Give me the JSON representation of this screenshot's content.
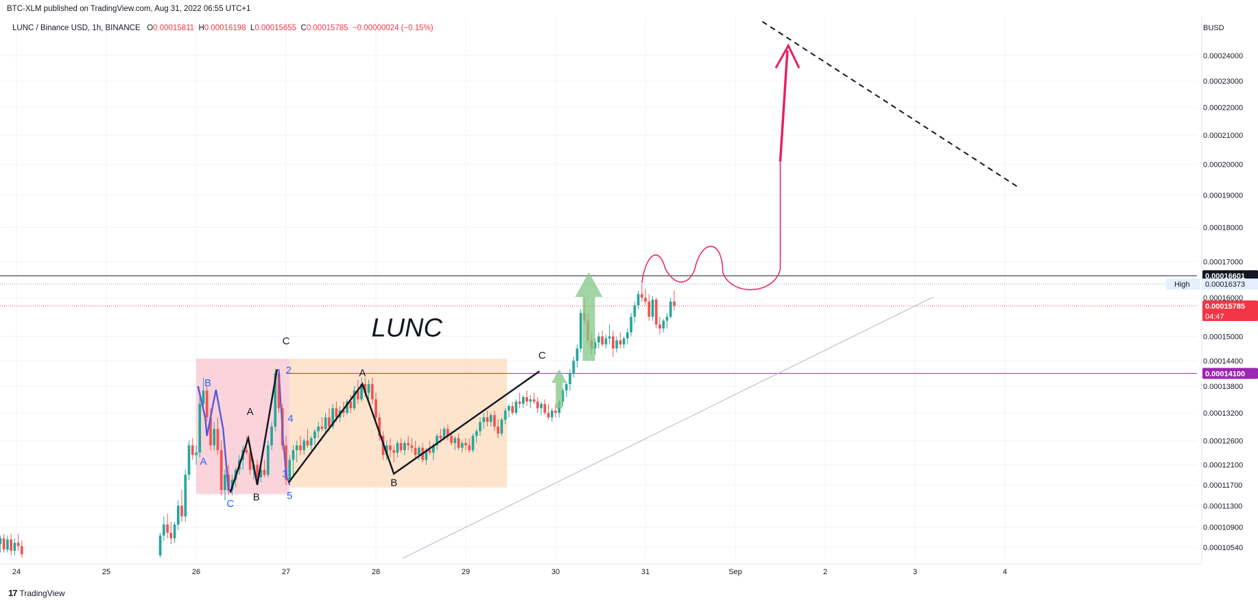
{
  "header": {
    "published": "BTC-XLM published on TradingView.com, Aug 31, 2022 06:55 UTC+1",
    "symbol": "LUNC / Binance USD, 1h, BINANCE",
    "o_label": "O",
    "o_value": "0.00015811",
    "h_label": "H",
    "h_value": "0.00016198",
    "l_label": "L",
    "l_value": "0.00015655",
    "c_label": "C",
    "c_value": "0.00015785",
    "change": "−0.00000024 (−0.15%)"
  },
  "footer": {
    "brand": "TradingView",
    "logo": "tradingview-logo-icon"
  },
  "colors": {
    "up": "#26a69a",
    "down": "#ef5350",
    "pink_zone": "#f8b7c3",
    "orange_zone": "#fcd9b8",
    "drawing_red": "#e91e63",
    "wave_blue": "#5b5bd6",
    "purple": "#9c27b0",
    "arrow_green": "#81c784"
  },
  "chart_data": {
    "type": "candlestick",
    "title": "LUNC",
    "currency_label": "BUSD",
    "x_ticks": [
      "24",
      "25",
      "26",
      "27",
      "28",
      "29",
      "30",
      "31",
      "Sep",
      "2",
      "3",
      "4"
    ],
    "y_ticks": [
      "0.00024000",
      "0.00023000",
      "0.00022000",
      "0.00021000",
      "0.00020000",
      "0.00019000",
      "0.00018000",
      "0.00017000",
      "0.00016000",
      "0.00015000",
      "0.00014400",
      "0.00013800",
      "0.00013200",
      "0.00012600",
      "0.00012100",
      "0.00011700",
      "0.00011300",
      "0.00010900",
      "0.00010540"
    ],
    "y_scale": "log",
    "ylim": [
      0.000103,
      0.000255
    ],
    "price_labels": [
      {
        "value": "0.00016601",
        "kind": "horizontal-line"
      },
      {
        "value": "0.00016373",
        "kind": "high",
        "tag": "High"
      },
      {
        "value": "0.00015785",
        "kind": "last",
        "countdown": "04:47"
      },
      {
        "value": "0.00014100",
        "kind": "horizontal-line"
      }
    ],
    "wave_labels": [
      {
        "text": "C",
        "day": 27.0,
        "price": 0.000148
      },
      {
        "text": "A",
        "day": 27.85,
        "price": 0.0001403
      },
      {
        "text": "B",
        "day": 28.2,
        "price": 0.0001168
      },
      {
        "text": "C",
        "day": 29.85,
        "price": 0.0001445
      },
      {
        "text": "A",
        "day": 26.6,
        "price": 0.0001315
      },
      {
        "text": "B",
        "day": 26.67,
        "price": 0.000114
      },
      {
        "text": "C",
        "day": 26.38,
        "price": 0.0001128
      },
      {
        "text": "B",
        "day": 26.13,
        "price": 0.000138
      },
      {
        "text": "A",
        "day": 26.08,
        "price": 0.000121
      }
    ],
    "sub_wave_labels": [
      {
        "text": "2",
        "day": 27.03,
        "price": 0.000141
      },
      {
        "text": "4",
        "day": 27.05,
        "price": 0.00013
      },
      {
        "text": "3",
        "day": 26.99,
        "price": 0.0001185
      },
      {
        "text": "5",
        "day": 27.04,
        "price": 0.0001143
      }
    ],
    "candles": [
      [
        23.82,
        0.000106,
        0.0001075,
        0.0001045,
        0.000107
      ],
      [
        23.86,
        0.000107,
        0.0001078,
        0.0001045,
        0.000105
      ],
      [
        23.9,
        0.000105,
        0.0001075,
        0.0001045,
        0.0001068
      ],
      [
        23.94,
        0.0001068,
        0.0001078,
        0.000104,
        0.0001048
      ],
      [
        23.98,
        0.0001048,
        0.000107,
        0.000104,
        0.0001062
      ],
      [
        24.02,
        0.0001062,
        0.0001078,
        0.0001048,
        0.0001056
      ],
      [
        24.06,
        0.0001056,
        0.0001066,
        0.0001036,
        0.0001042
      ],
      [
        25.6,
        0.000104,
        0.000108,
        0.0001036,
        0.0001075
      ],
      [
        25.64,
        0.0001075,
        0.000111,
        0.0001065,
        0.0001095
      ],
      [
        25.68,
        0.0001095,
        0.0001115,
        0.000107,
        0.000108
      ],
      [
        25.72,
        0.000108,
        0.00011,
        0.000106,
        0.000107
      ],
      [
        25.76,
        0.000107,
        0.00011,
        0.0001062,
        0.0001095
      ],
      [
        25.8,
        0.0001095,
        0.000114,
        0.0001085,
        0.000113
      ],
      [
        25.84,
        0.000113,
        0.000116,
        0.00011,
        0.000111
      ],
      [
        25.88,
        0.000111,
        0.00012,
        0.00011,
        0.000119
      ],
      [
        25.92,
        0.000119,
        0.000126,
        0.000118,
        0.000125
      ],
      [
        25.96,
        0.000125,
        0.0001265,
        0.000122,
        0.000123
      ],
      [
        26.0,
        0.000123,
        0.000125,
        0.000121,
        0.0001235
      ],
      [
        26.04,
        0.0001235,
        0.000136,
        0.0001225,
        0.000134
      ],
      [
        26.08,
        0.000134,
        0.00014,
        0.000132,
        0.000137
      ],
      [
        26.12,
        0.000137,
        0.000138,
        0.00013,
        0.000131
      ],
      [
        26.16,
        0.000131,
        0.000133,
        0.000124,
        0.000125
      ],
      [
        26.2,
        0.000125,
        0.00013,
        0.000124,
        0.0001285
      ],
      [
        26.24,
        0.0001285,
        0.000131,
        0.000123,
        0.000124
      ],
      [
        26.28,
        0.000124,
        0.000126,
        0.000115,
        0.000116
      ],
      [
        26.32,
        0.000116,
        0.00012,
        0.000114,
        0.000119
      ],
      [
        26.36,
        0.000119,
        0.000121,
        0.000115,
        0.000116
      ],
      [
        26.4,
        0.000116,
        0.000119,
        0.000115,
        0.000118
      ],
      [
        26.44,
        0.000118,
        0.0001205,
        0.0001165,
        0.00012
      ],
      [
        26.48,
        0.00012,
        0.000123,
        0.000119,
        0.000122
      ],
      [
        26.52,
        0.000122,
        0.000125,
        0.00012,
        0.000124
      ],
      [
        26.56,
        0.000124,
        0.000127,
        0.000123,
        0.0001235
      ],
      [
        26.6,
        0.0001235,
        0.000125,
        0.000119,
        0.00012
      ],
      [
        26.64,
        0.00012,
        0.000122,
        0.000118,
        0.000121
      ],
      [
        26.68,
        0.000121,
        0.000122,
        0.000117,
        0.0001185
      ],
      [
        26.72,
        0.0001185,
        0.0001205,
        0.0001175,
        0.00012
      ],
      [
        26.76,
        0.00012,
        0.000122,
        0.0001185,
        0.000119
      ],
      [
        26.8,
        0.000119,
        0.000126,
        0.0001185,
        0.000125
      ],
      [
        26.84,
        0.000125,
        0.00013,
        0.000124,
        0.000129
      ],
      [
        26.88,
        0.000129,
        0.000142,
        0.000128,
        0.000141
      ],
      [
        26.92,
        0.000141,
        0.000142,
        0.000132,
        0.000133
      ],
      [
        26.96,
        0.000133,
        0.000134,
        0.000124,
        0.000125
      ],
      [
        27.0,
        0.000125,
        0.000127,
        0.000117,
        0.000118
      ],
      [
        27.04,
        0.000118,
        0.000123,
        0.000117,
        0.000122
      ],
      [
        27.08,
        0.000122,
        0.000125,
        0.000119,
        0.000124
      ],
      [
        27.12,
        0.000124,
        0.000126,
        0.0001215,
        0.000125
      ],
      [
        27.16,
        0.000125,
        0.000127,
        0.000123,
        0.000124
      ],
      [
        27.2,
        0.000124,
        0.0001265,
        0.000123,
        0.000126
      ],
      [
        27.24,
        0.000126,
        0.0001285,
        0.0001245,
        0.000125
      ],
      [
        27.28,
        0.000125,
        0.000127,
        0.000124,
        0.0001265
      ],
      [
        27.32,
        0.0001265,
        0.0001285,
        0.000125,
        0.000128
      ],
      [
        27.36,
        0.000128,
        0.00013,
        0.0001265,
        0.000129
      ],
      [
        27.4,
        0.000129,
        0.000131,
        0.000128,
        0.0001285
      ],
      [
        27.44,
        0.0001285,
        0.000132,
        0.0001275,
        0.000131
      ],
      [
        27.48,
        0.000131,
        0.000133,
        0.000128,
        0.000129
      ],
      [
        27.52,
        0.000129,
        0.000134,
        0.0001285,
        0.000133
      ],
      [
        27.56,
        0.000133,
        0.0001345,
        0.00013,
        0.000131
      ],
      [
        27.6,
        0.000131,
        0.0001335,
        0.00013,
        0.0001325
      ],
      [
        27.64,
        0.0001325,
        0.0001345,
        0.000131,
        0.000132
      ],
      [
        27.68,
        0.000132,
        0.000135,
        0.0001315,
        0.0001345
      ],
      [
        27.72,
        0.0001345,
        0.000136,
        0.000132,
        0.000133
      ],
      [
        27.76,
        0.000133,
        0.000138,
        0.0001325,
        0.000137
      ],
      [
        27.8,
        0.000137,
        0.0001395,
        0.000134,
        0.000135
      ],
      [
        27.84,
        0.000135,
        0.00014,
        0.0001345,
        0.0001385
      ],
      [
        27.88,
        0.0001385,
        0.00014,
        0.0001355,
        0.0001365
      ],
      [
        27.92,
        0.0001365,
        0.0001395,
        0.000135,
        0.0001385
      ],
      [
        27.96,
        0.0001385,
        0.00014,
        0.000134,
        0.000135
      ],
      [
        28.0,
        0.000135,
        0.0001365,
        0.00013,
        0.000131
      ],
      [
        28.04,
        0.000131,
        0.000132,
        0.000126,
        0.000127
      ],
      [
        28.08,
        0.000127,
        0.000128,
        0.000122,
        0.000123
      ],
      [
        28.12,
        0.000123,
        0.000126,
        0.000122,
        0.000125
      ],
      [
        28.16,
        0.000125,
        0.0001265,
        0.0001225,
        0.000124
      ],
      [
        28.2,
        0.000124,
        0.000125,
        0.0001215,
        0.0001235
      ],
      [
        28.24,
        0.0001235,
        0.000126,
        0.0001225,
        0.0001255
      ],
      [
        28.28,
        0.0001255,
        0.0001265,
        0.0001235,
        0.000124
      ],
      [
        28.32,
        0.000124,
        0.000126,
        0.000123,
        0.0001255
      ],
      [
        28.36,
        0.0001255,
        0.000127,
        0.000124,
        0.000125
      ],
      [
        28.4,
        0.000125,
        0.0001265,
        0.0001235,
        0.0001245
      ],
      [
        28.44,
        0.0001245,
        0.000126,
        0.0001225,
        0.000123
      ],
      [
        28.48,
        0.000123,
        0.000125,
        0.000122,
        0.0001245
      ],
      [
        28.52,
        0.0001245,
        0.0001255,
        0.0001215,
        0.000122
      ],
      [
        28.56,
        0.000122,
        0.0001245,
        0.000121,
        0.000124
      ],
      [
        28.6,
        0.000124,
        0.000126,
        0.000123,
        0.0001235
      ],
      [
        28.64,
        0.0001235,
        0.0001255,
        0.000122,
        0.000125
      ],
      [
        28.68,
        0.000125,
        0.0001275,
        0.000124,
        0.000127
      ],
      [
        28.72,
        0.000127,
        0.0001285,
        0.0001255,
        0.0001265
      ],
      [
        28.76,
        0.0001265,
        0.000129,
        0.000126,
        0.0001285
      ],
      [
        28.8,
        0.0001285,
        0.0001295,
        0.000126,
        0.000127
      ],
      [
        28.84,
        0.000127,
        0.000128,
        0.000125,
        0.0001255
      ],
      [
        28.88,
        0.0001255,
        0.000127,
        0.000124,
        0.0001265
      ],
      [
        28.92,
        0.0001265,
        0.0001275,
        0.000124,
        0.0001245
      ],
      [
        28.96,
        0.0001245,
        0.000126,
        0.0001235,
        0.0001255
      ],
      [
        29.0,
        0.0001255,
        0.0001265,
        0.000124,
        0.000125
      ],
      [
        29.04,
        0.000125,
        0.0001265,
        0.0001235,
        0.000124
      ],
      [
        29.08,
        0.000124,
        0.0001275,
        0.0001235,
        0.000127
      ],
      [
        29.12,
        0.000127,
        0.0001285,
        0.0001255,
        0.000128
      ],
      [
        29.16,
        0.000128,
        0.000131,
        0.000127,
        0.00013
      ],
      [
        29.2,
        0.00013,
        0.000132,
        0.0001285,
        0.000131
      ],
      [
        29.24,
        0.000131,
        0.0001325,
        0.000129,
        0.00013
      ],
      [
        29.28,
        0.00013,
        0.000132,
        0.000129,
        0.0001315
      ],
      [
        29.32,
        0.0001315,
        0.0001325,
        0.000128,
        0.000129
      ],
      [
        29.36,
        0.000129,
        0.0001305,
        0.0001265,
        0.0001275
      ],
      [
        29.4,
        0.0001275,
        0.000131,
        0.000127,
        0.0001305
      ],
      [
        29.44,
        0.0001305,
        0.000133,
        0.0001295,
        0.0001325
      ],
      [
        29.48,
        0.0001325,
        0.000134,
        0.000131,
        0.0001335
      ],
      [
        29.52,
        0.0001335,
        0.0001345,
        0.0001315,
        0.000132
      ],
      [
        29.56,
        0.000132,
        0.000135,
        0.0001315,
        0.0001345
      ],
      [
        29.6,
        0.0001345,
        0.0001365,
        0.000133,
        0.000134
      ],
      [
        29.64,
        0.000134,
        0.000136,
        0.000133,
        0.0001355
      ],
      [
        29.68,
        0.0001355,
        0.000137,
        0.0001335,
        0.0001345
      ],
      [
        29.72,
        0.0001345,
        0.000136,
        0.000133,
        0.000135
      ],
      [
        29.76,
        0.000135,
        0.0001365,
        0.000134,
        0.0001345
      ],
      [
        29.8,
        0.0001345,
        0.0001355,
        0.000132,
        0.000133
      ],
      [
        29.84,
        0.000133,
        0.0001345,
        0.0001315,
        0.000134
      ],
      [
        29.88,
        0.000134,
        0.000135,
        0.0001315,
        0.000132
      ],
      [
        29.92,
        0.000132,
        0.000134,
        0.0001305,
        0.000131
      ],
      [
        29.96,
        0.000131,
        0.000133,
        0.00013,
        0.0001325
      ],
      [
        30.0,
        0.0001325,
        0.000134,
        0.000131,
        0.000132
      ],
      [
        30.04,
        0.000132,
        0.000135,
        0.000131,
        0.0001345
      ],
      [
        30.08,
        0.0001345,
        0.0001375,
        0.0001335,
        0.000137
      ],
      [
        30.12,
        0.000137,
        0.000139,
        0.0001355,
        0.0001385
      ],
      [
        30.16,
        0.0001385,
        0.000142,
        0.000137,
        0.000141
      ],
      [
        30.2,
        0.000141,
        0.000145,
        0.00014,
        0.000144
      ],
      [
        30.24,
        0.000144,
        0.000148,
        0.0001425,
        0.000147
      ],
      [
        30.28,
        0.000147,
        0.000157,
        0.000146,
        0.000156
      ],
      [
        30.32,
        0.000156,
        0.00016,
        0.000153,
        0.000154
      ],
      [
        30.36,
        0.000154,
        0.000156,
        0.000148,
        0.000149
      ],
      [
        30.4,
        0.000149,
        0.000151,
        0.0001455,
        0.000147
      ],
      [
        30.44,
        0.000147,
        0.0001495,
        0.0001455,
        0.0001485
      ],
      [
        30.48,
        0.0001485,
        0.000151,
        0.000147,
        0.00015
      ],
      [
        30.52,
        0.00015,
        0.0001515,
        0.0001475,
        0.000148
      ],
      [
        30.56,
        0.000148,
        0.0001505,
        0.000147,
        0.0001495
      ],
      [
        30.6,
        0.0001495,
        0.000153,
        0.000148,
        0.00015
      ],
      [
        30.64,
        0.00015,
        0.0001515,
        0.000145,
        0.000147
      ],
      [
        30.68,
        0.000147,
        0.00015,
        0.000146,
        0.000149
      ],
      [
        30.72,
        0.000149,
        0.000151,
        0.000147,
        0.000148
      ],
      [
        30.76,
        0.000148,
        0.00015,
        0.000147,
        0.0001495
      ],
      [
        30.8,
        0.0001495,
        0.000152,
        0.000148,
        0.000151
      ],
      [
        30.84,
        0.000151,
        0.000156,
        0.00015,
        0.000155
      ],
      [
        30.88,
        0.000155,
        0.000159,
        0.0001535,
        0.000158
      ],
      [
        30.92,
        0.000158,
        0.000162,
        0.000157,
        0.000161
      ],
      [
        30.96,
        0.000161,
        0.0001637,
        0.000159,
        0.00016
      ],
      [
        31.0,
        0.00016,
        0.0001625,
        0.000158,
        0.000159
      ],
      [
        31.04,
        0.000159,
        0.000161,
        0.000154,
        0.000155
      ],
      [
        31.08,
        0.000155,
        0.0001605,
        0.000154,
        0.0001595
      ],
      [
        31.12,
        0.0001595,
        0.00016,
        0.000152,
        0.000153
      ],
      [
        31.16,
        0.000153,
        0.000155,
        0.0001505,
        0.000152
      ],
      [
        31.2,
        0.000152,
        0.0001545,
        0.000151,
        0.000154
      ],
      [
        31.24,
        0.000154,
        0.000156,
        0.000152,
        0.000155
      ],
      [
        31.28,
        0.000155,
        0.00016,
        0.0001545,
        0.000159
      ],
      [
        31.32,
        0.000159,
        0.000162,
        0.0001566,
        0.0001579
      ]
    ]
  }
}
